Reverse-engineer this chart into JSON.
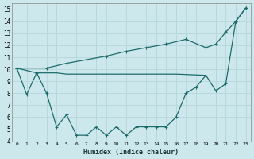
{
  "xlabel": "Humidex (Indice chaleur)",
  "bg_color": "#cce8ec",
  "line_color": "#1e6b6b",
  "grid_color": "#b8d8dc",
  "xlim": [
    -0.5,
    23.5
  ],
  "ylim": [
    4,
    15.5
  ],
  "xticks": [
    0,
    1,
    2,
    3,
    4,
    5,
    6,
    7,
    8,
    9,
    10,
    11,
    12,
    13,
    14,
    15,
    16,
    17,
    18,
    19,
    20,
    21,
    22,
    23
  ],
  "yticks": [
    4,
    5,
    6,
    7,
    8,
    9,
    10,
    11,
    12,
    13,
    14,
    15
  ],
  "line1_x": [
    0,
    1,
    2,
    3,
    4,
    5,
    6,
    7,
    8,
    9,
    10,
    11,
    12,
    13,
    14,
    15,
    16,
    17,
    18,
    19,
    20,
    21,
    22,
    23
  ],
  "line1_y": [
    10.1,
    7.9,
    9.7,
    8.0,
    5.2,
    6.2,
    4.5,
    4.5,
    5.2,
    4.5,
    5.2,
    4.5,
    5.2,
    5.2,
    5.2,
    5.2,
    6.0,
    8.0,
    8.5,
    9.5,
    8.2,
    8.8,
    14.0,
    15.1
  ],
  "line2_x": [
    0,
    2,
    3,
    4,
    5,
    6,
    7,
    8,
    9,
    10,
    11,
    12,
    13,
    14,
    15,
    16,
    19
  ],
  "line2_y": [
    10.1,
    9.7,
    9.7,
    9.7,
    9.6,
    9.6,
    9.6,
    9.6,
    9.6,
    9.6,
    9.6,
    9.6,
    9.6,
    9.6,
    9.6,
    9.6,
    9.5
  ],
  "line3_x": [
    0,
    3,
    5,
    7,
    9,
    11,
    13,
    15,
    17,
    19,
    20,
    21,
    22,
    23
  ],
  "line3_y": [
    10.1,
    10.1,
    10.5,
    10.8,
    11.1,
    11.5,
    11.8,
    12.1,
    12.5,
    11.8,
    12.1,
    13.1,
    14.0,
    15.1
  ]
}
